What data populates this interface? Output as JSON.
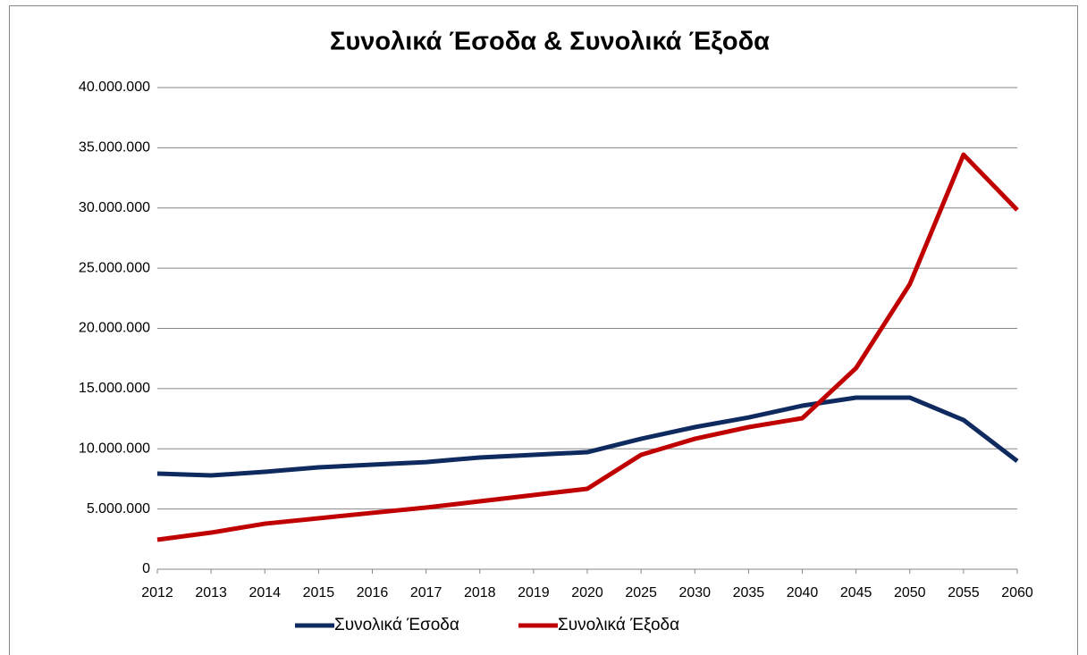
{
  "chart_data": {
    "type": "line",
    "title": "Συνολικά Έσοδα & Συνολικά Έξοδα",
    "categories": [
      "2012",
      "2013",
      "2014",
      "2015",
      "2016",
      "2017",
      "2018",
      "2019",
      "2020",
      "2025",
      "2030",
      "2035",
      "2040",
      "2045",
      "2050",
      "2055",
      "2060"
    ],
    "series": [
      {
        "name": "Συνολικά Έσοδα",
        "color": "#0e2a5f",
        "values": [
          7940000,
          7790000,
          8090000,
          8460000,
          8680000,
          8900000,
          9280000,
          9500000,
          9720000,
          10830000,
          11800000,
          12600000,
          13580000,
          14250000,
          14250000,
          12390000,
          8980000
        ]
      },
      {
        "name": "Συνολικά Έξοδα",
        "color": "#c00000",
        "values": [
          2450000,
          3040000,
          3780000,
          4230000,
          4680000,
          5120000,
          5640000,
          6160000,
          6680000,
          9500000,
          10830000,
          11800000,
          12540000,
          16700000,
          23670000,
          34430000,
          29830000
        ]
      }
    ],
    "ylim": [
      0,
      40000000
    ],
    "yticks": [
      0,
      {
        "value": 5000000,
        "label": "5.000.000"
      },
      {
        "value": 10000000,
        "label": "10.000.000"
      },
      {
        "value": 15000000,
        "label": "15.000.000"
      },
      {
        "value": 20000000,
        "label": "20.000.000"
      },
      {
        "value": 25000000,
        "label": "25.000.000"
      },
      {
        "value": 30000000,
        "label": "30.000.000"
      },
      {
        "value": 35000000,
        "label": "35.000.000"
      },
      {
        "value": 40000000,
        "label": "40.000.000"
      }
    ],
    "grid": true,
    "legend": "bottom"
  }
}
